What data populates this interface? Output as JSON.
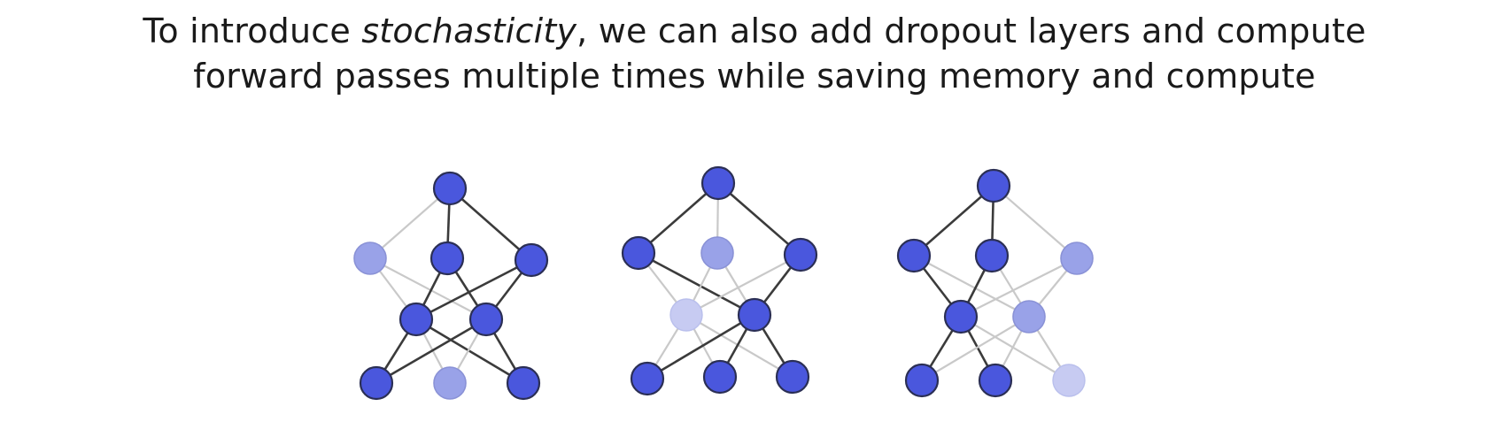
{
  "slide": {
    "title": {
      "prefix": "To introduce ",
      "emphasis": "stochasticity",
      "suffix": ", we can also add dropout layers and compute",
      "line2": "forward passes multiple times while saving memory and compute"
    }
  },
  "colors": {
    "active_node": "#4a57dd",
    "dropped_node": "#99a2e8",
    "faint_node": "#c7cbf2",
    "node_stroke": "#2b2f55",
    "active_edge": "#3b3b3b",
    "dropped_edge": "#c9c9c9"
  },
  "networks": [
    {
      "name": "network-1",
      "nodes": [
        {
          "id": "top",
          "state": "active"
        },
        {
          "id": "l2a",
          "state": "dropped"
        },
        {
          "id": "l2b",
          "state": "active"
        },
        {
          "id": "l2c",
          "state": "active"
        },
        {
          "id": "l3a",
          "state": "active"
        },
        {
          "id": "l3b",
          "state": "active"
        },
        {
          "id": "l4a",
          "state": "active"
        },
        {
          "id": "l4b",
          "state": "dropped"
        },
        {
          "id": "l4c",
          "state": "active"
        }
      ]
    },
    {
      "name": "network-2",
      "nodes": [
        {
          "id": "top",
          "state": "active"
        },
        {
          "id": "l2a",
          "state": "active"
        },
        {
          "id": "l2b",
          "state": "dropped"
        },
        {
          "id": "l2c",
          "state": "active"
        },
        {
          "id": "l3a",
          "state": "faint"
        },
        {
          "id": "l3b",
          "state": "active"
        },
        {
          "id": "l4a",
          "state": "active"
        },
        {
          "id": "l4b",
          "state": "active"
        },
        {
          "id": "l4c",
          "state": "active"
        }
      ]
    },
    {
      "name": "network-3",
      "nodes": [
        {
          "id": "top",
          "state": "active"
        },
        {
          "id": "l2a",
          "state": "active"
        },
        {
          "id": "l2b",
          "state": "active"
        },
        {
          "id": "l2c",
          "state": "dropped"
        },
        {
          "id": "l3a",
          "state": "active"
        },
        {
          "id": "l3b",
          "state": "dropped"
        },
        {
          "id": "l4a",
          "state": "active"
        },
        {
          "id": "l4b",
          "state": "active"
        },
        {
          "id": "l4c",
          "state": "faint"
        }
      ]
    }
  ]
}
